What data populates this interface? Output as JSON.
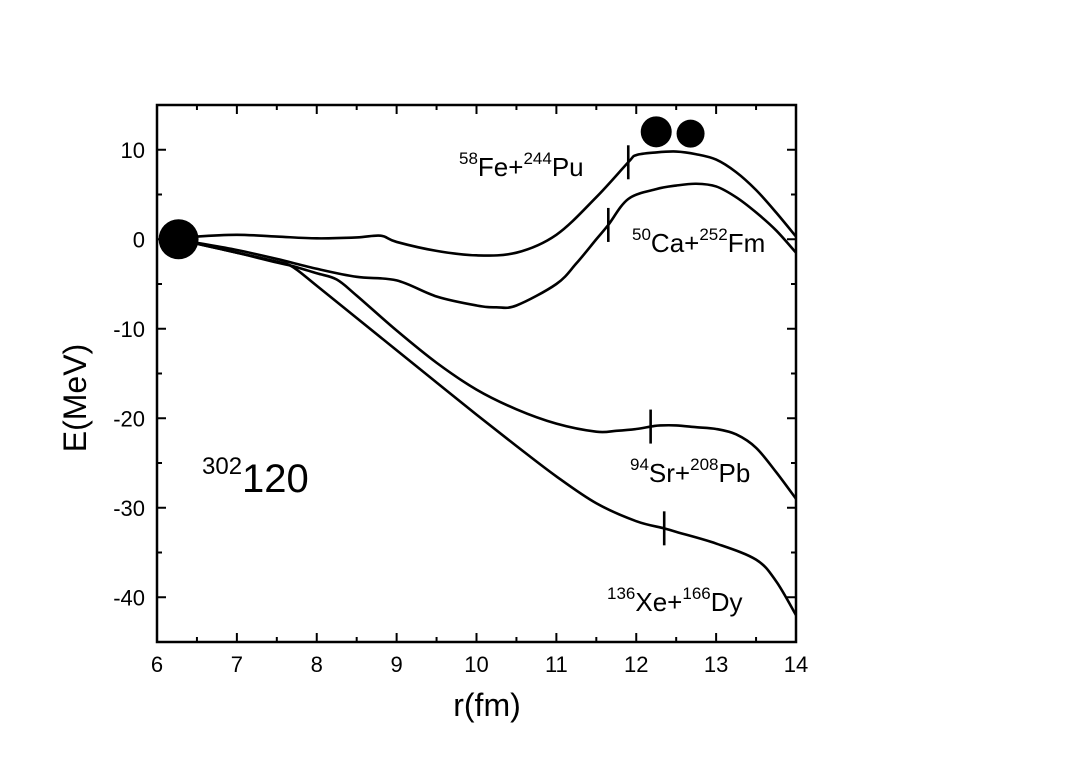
{
  "chart_data": {
    "type": "line",
    "xlabel": "r(fm)",
    "ylabel": "E(MeV)",
    "xlim": [
      6,
      14
    ],
    "ylim": [
      -45,
      15
    ],
    "xticks": [
      6,
      7,
      8,
      9,
      10,
      11,
      12,
      13,
      14
    ],
    "yticks": [
      10,
      0,
      -10,
      -20,
      -30,
      -40
    ],
    "xtick_labels": [
      "6",
      "7",
      "8",
      "9",
      "10",
      "11",
      "12",
      "13",
      "14"
    ],
    "ytick_labels": [
      "10",
      "0",
      "-10",
      "-20",
      "-30",
      "-40"
    ],
    "grid": false,
    "nucleus_label": {
      "sup": "302",
      "main": "120"
    },
    "series": [
      {
        "name": "58Fe+244Pu",
        "label": {
          "sup1": "58",
          "base1": "Fe+",
          "sup2": "244",
          "base2": "Pu"
        },
        "x": [
          6.25,
          6.5,
          7.0,
          7.5,
          8.0,
          8.5,
          8.8,
          9.0,
          9.5,
          10.0,
          10.5,
          11.0,
          11.5,
          11.9,
          12.0,
          12.25,
          12.5,
          12.75,
          13.0,
          13.25,
          13.5,
          13.75,
          14.0
        ],
        "y": [
          0.0,
          0.3,
          0.5,
          0.3,
          0.1,
          0.2,
          0.4,
          -0.3,
          -1.3,
          -1.8,
          -1.5,
          0.5,
          4.7,
          8.6,
          9.4,
          9.7,
          9.8,
          9.5,
          8.9,
          7.5,
          5.5,
          3.0,
          0.3
        ],
        "marker_x": 11.9
      },
      {
        "name": "50Ca+252Fm",
        "label": {
          "sup1": "50",
          "base1": "Ca+",
          "sup2": "252",
          "base2": "Fm"
        },
        "x": [
          6.25,
          6.5,
          7.0,
          7.5,
          8.0,
          8.5,
          9.0,
          9.5,
          10.0,
          10.25,
          10.5,
          11.0,
          11.25,
          11.5,
          11.65,
          11.9,
          12.25,
          12.5,
          12.75,
          13.0,
          13.25,
          13.5,
          13.75,
          14.0
        ],
        "y": [
          0.0,
          -0.4,
          -1.2,
          -2.2,
          -3.3,
          -4.2,
          -4.6,
          -6.4,
          -7.4,
          -7.6,
          -7.4,
          -5.0,
          -2.7,
          0.0,
          1.6,
          4.5,
          5.6,
          6.0,
          6.2,
          5.9,
          4.7,
          3.0,
          1.0,
          -1.5
        ],
        "marker_x": 11.65
      },
      {
        "name": "94Sr+208Pb",
        "label": {
          "sup1": "94",
          "base1": "Sr+",
          "sup2": "208",
          "base2": "Pb"
        },
        "x": [
          6.25,
          6.5,
          7.0,
          7.5,
          7.7,
          8.0,
          8.25,
          8.5,
          9.0,
          9.5,
          10.0,
          10.5,
          11.0,
          11.5,
          11.75,
          12.0,
          12.2,
          12.3,
          12.5,
          12.75,
          13.0,
          13.25,
          13.5,
          13.75,
          14.0
        ],
        "y": [
          0.0,
          -0.5,
          -1.5,
          -2.6,
          -3.0,
          -3.8,
          -4.5,
          -6.3,
          -10.2,
          -13.8,
          -16.8,
          -19.0,
          -20.6,
          -21.5,
          -21.4,
          -21.2,
          -20.9,
          -20.8,
          -20.8,
          -21.0,
          -21.2,
          -21.8,
          -23.3,
          -26.0,
          -29.0
        ],
        "marker_x": 12.18
      },
      {
        "name": "136Xe+166Dy",
        "label": {
          "sup1": "136",
          "base1": "Xe+",
          "sup2": "166",
          "base2": "Dy"
        },
        "x": [
          6.25,
          6.5,
          7.0,
          7.5,
          7.7,
          8.0,
          8.5,
          9.0,
          9.5,
          10.0,
          10.5,
          11.0,
          11.5,
          12.0,
          12.35,
          12.5,
          13.0,
          13.5,
          13.75,
          14.0
        ],
        "y": [
          0.0,
          -0.5,
          -1.5,
          -2.5,
          -3.1,
          -5.2,
          -8.8,
          -12.4,
          -16.0,
          -19.6,
          -23.1,
          -26.5,
          -29.5,
          -31.5,
          -32.3,
          -32.7,
          -34.0,
          -35.8,
          -38.2,
          -42.0
        ],
        "marker_x": 12.35
      }
    ],
    "compound_marker": {
      "x": 6.27,
      "y": 0.0
    },
    "fragment_markers": [
      {
        "x": 12.25,
        "y": 12.0
      },
      {
        "x": 12.68,
        "y": 11.8
      }
    ]
  }
}
